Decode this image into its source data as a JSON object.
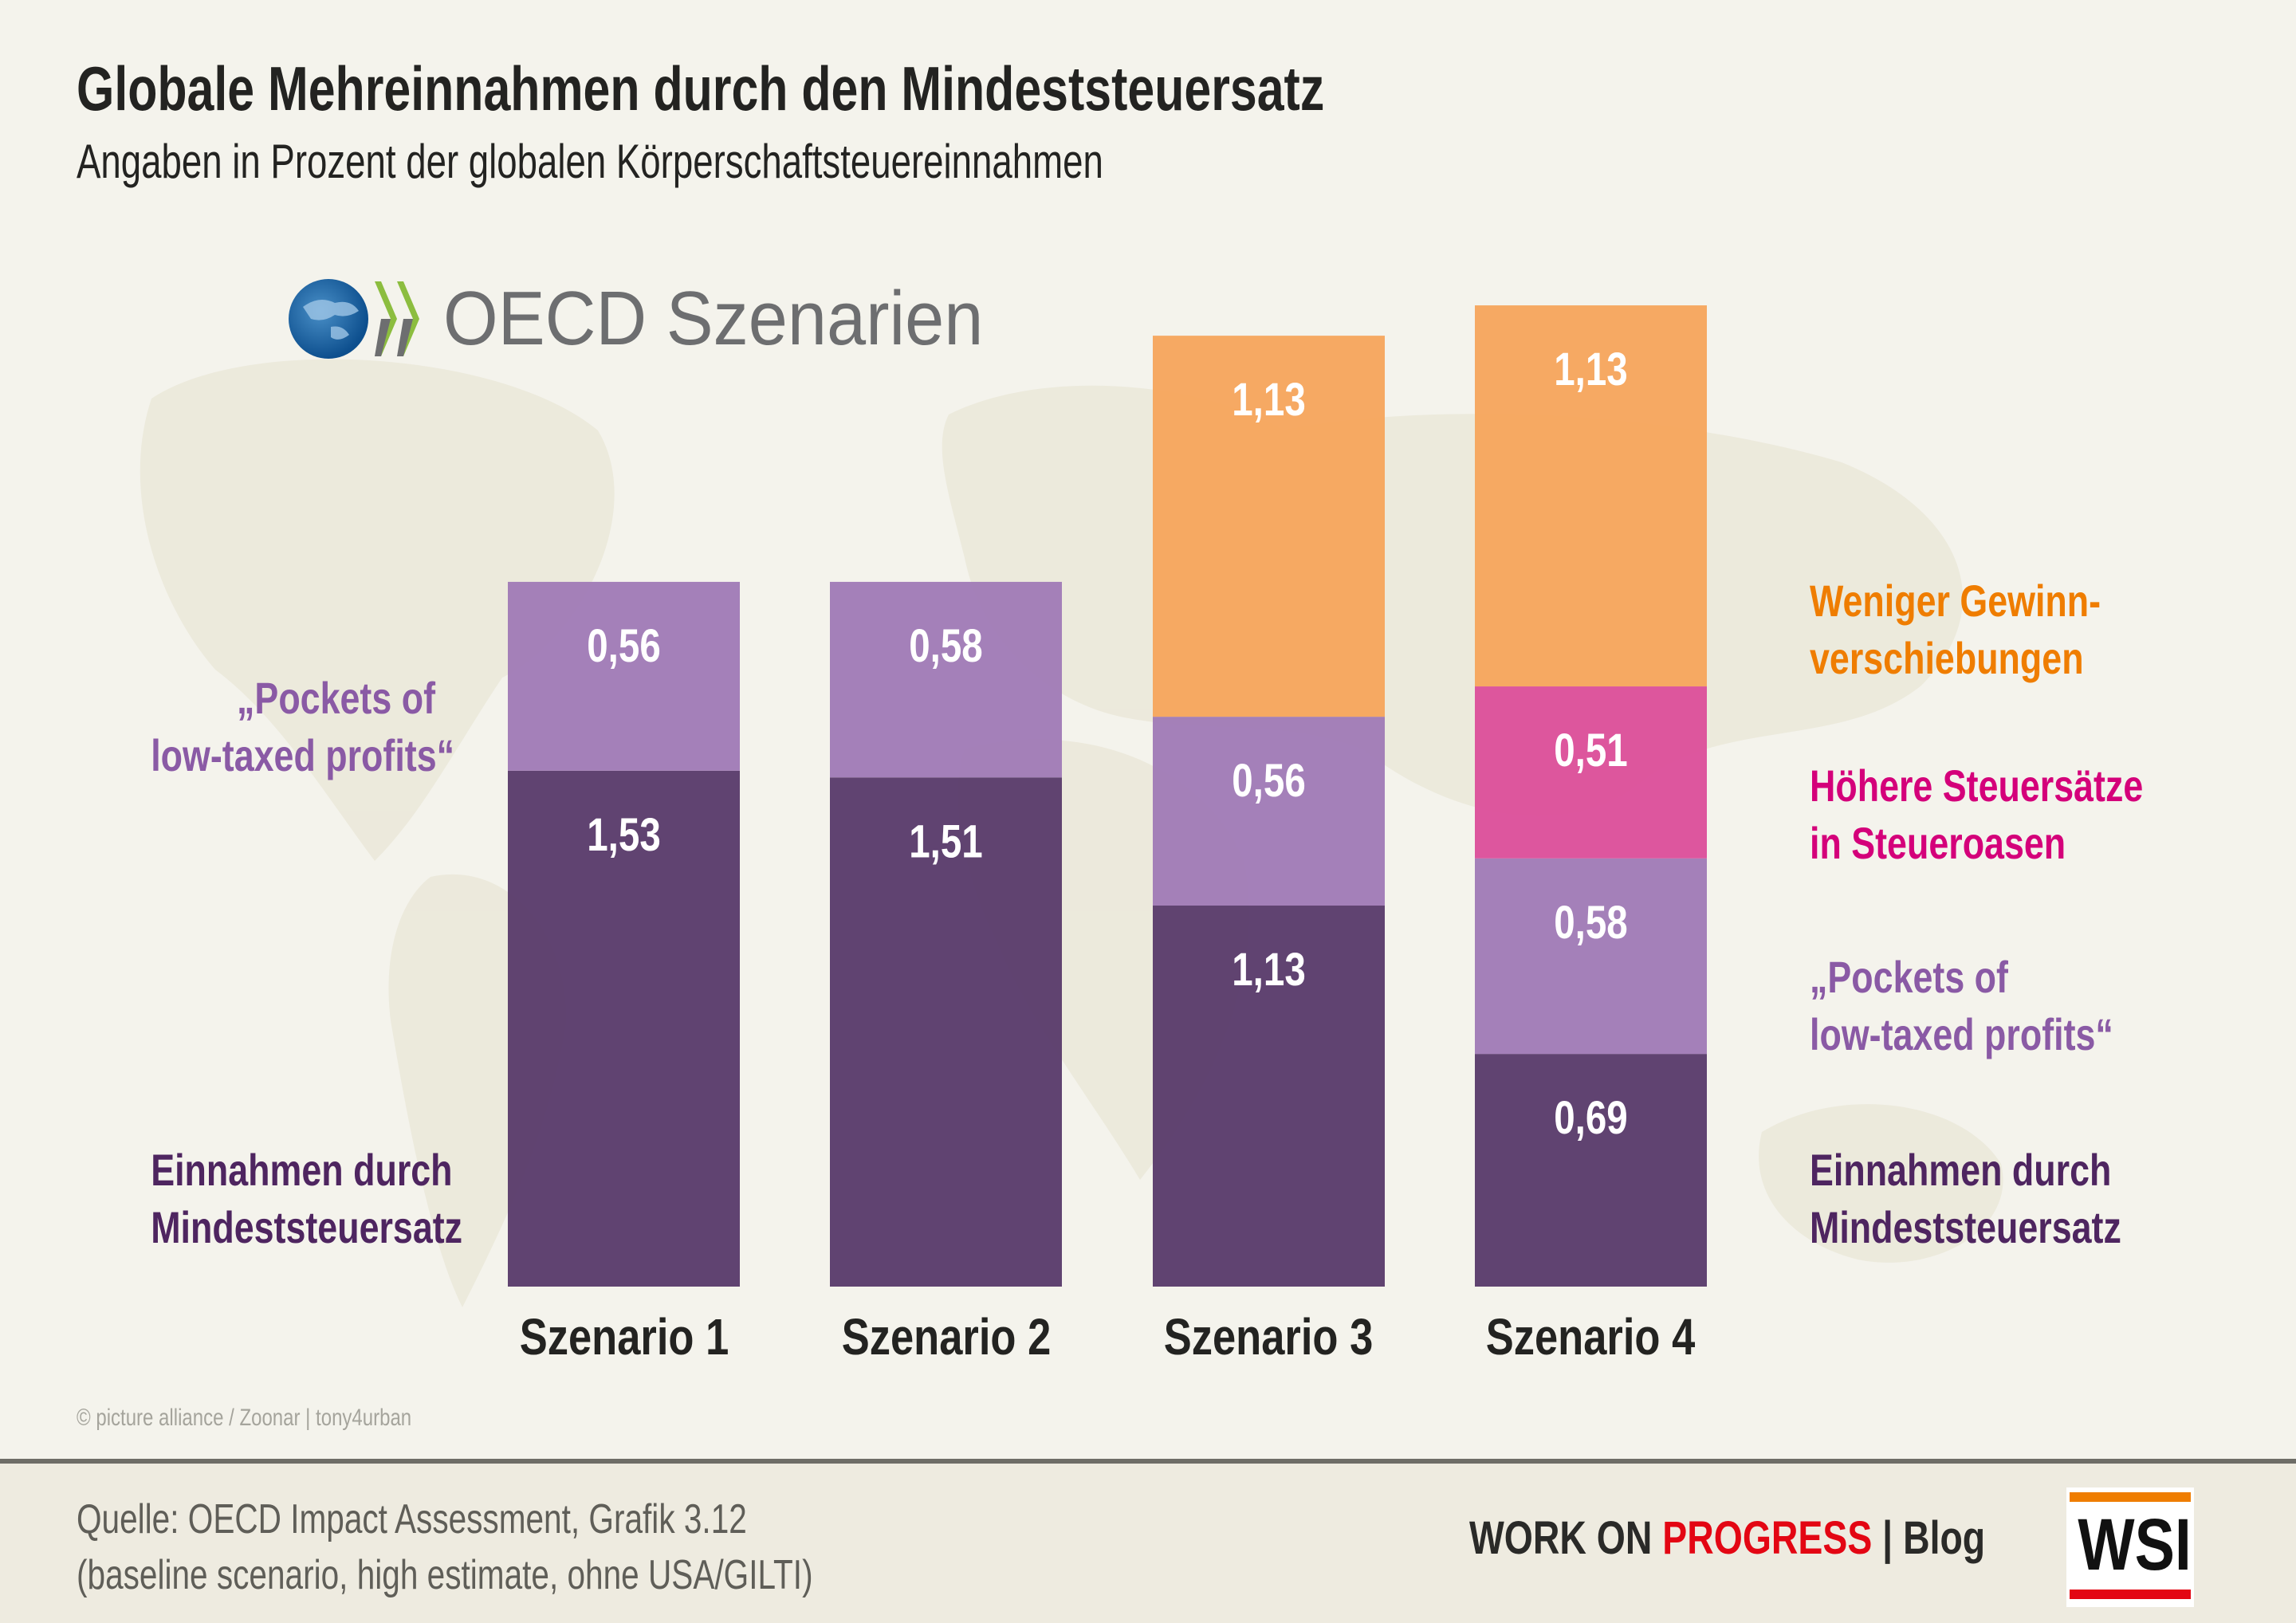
{
  "header": {
    "title": "Globale Mehreinnahmen durch den Mindeststeuersatz",
    "subtitle": "Angaben in Prozent der globalen Körperschaftsteuereinnahmen"
  },
  "logo": {
    "icon": "oecd-globe-icon",
    "text": "OECD Szenarien"
  },
  "chart_data": {
    "type": "bar",
    "stacked": true,
    "title": "Globale Mehreinnahmen durch den Mindeststeuersatz",
    "subtitle": "Angaben in Prozent der globalen Körperschaftsteuereinnahmen",
    "categories": [
      "Szenario 1",
      "Szenario 2",
      "Szenario 3",
      "Szenario 4"
    ],
    "series": [
      {
        "name": "Einnahmen durch Mindeststeuersatz",
        "color": "#593b6b",
        "values": [
          1.53,
          1.51,
          1.13,
          0.69
        ],
        "labels": [
          "1,53",
          "1,51",
          "1,13",
          "0,69"
        ]
      },
      {
        "name": "„Pockets of low-taxed profits“",
        "color": "#a07bb6",
        "values": [
          0.56,
          0.58,
          0.56,
          0.58
        ],
        "labels": [
          "0,56",
          "0,58",
          "0,56",
          "0,58"
        ]
      },
      {
        "name": "Höhere Steuersätze in Steueroasen",
        "color": "#dc4f9a",
        "values": [
          0,
          0,
          0,
          0.51
        ],
        "labels": [
          "",
          "",
          "",
          "0,51"
        ]
      },
      {
        "name": "Weniger Gewinnverschiebungen",
        "color": "#f6a55d",
        "values": [
          0,
          0,
          1.13,
          1.13
        ],
        "labels": [
          "",
          "",
          "1,13",
          "1,13"
        ]
      }
    ],
    "xlabel": "",
    "ylabel": "",
    "ylim": [
      0,
      3.0
    ],
    "grid": false
  },
  "legend_left": {
    "pockets": [
      "„Pockets of",
      "low-taxed profits“"
    ],
    "einnahmen": [
      "Einnahmen durch",
      "Mindeststeuersatz"
    ]
  },
  "legend_right": {
    "weniger": [
      "Weniger Gewinn-",
      "verschiebungen"
    ],
    "hoehere": [
      "Höhere Steuersätze",
      "in Steueroasen"
    ],
    "pockets": [
      "„Pockets of",
      "low-taxed profits“"
    ],
    "einnahmen": [
      "Einnahmen durch",
      "Mindeststeuersatz"
    ]
  },
  "label_colors": {
    "orange": "#ef7d00",
    "pink": "#d4007a",
    "purple": "#8a5aa5",
    "dark": "#4e2560"
  },
  "credit": "© picture alliance / Zoonar | tony4urban",
  "footer": {
    "source_line1": "Quelle: OECD Impact Assessment, Grafik 3.12",
    "source_line2": "(baseline scenario, high estimate, ohne USA/GILTI)",
    "brand_part1": "WORK ON ",
    "brand_part2": "PROGRESS",
    "brand_sep": " | ",
    "brand_part3": "Blog",
    "wsi": "WSI"
  }
}
